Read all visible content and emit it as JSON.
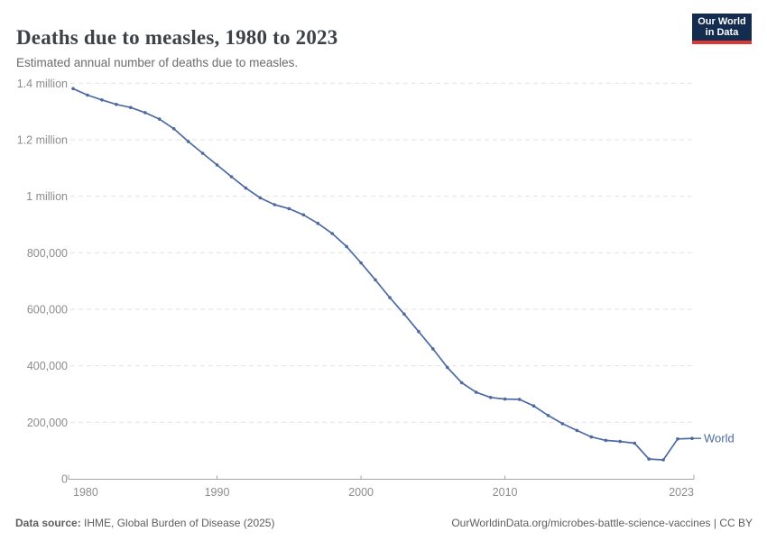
{
  "header": {
    "title": "Deaths due to measles, 1980 to 2023",
    "subtitle": "Estimated annual number of deaths due to measles.",
    "logo": {
      "line1": "Our World",
      "line2": "in Data",
      "bg_color": "#132c4f",
      "accent_color": "#d93a34"
    }
  },
  "footer": {
    "source_label": "Data source:",
    "source_value": " IHME, Global Burden of Disease (2025)",
    "credit": "OurWorldinData.org/microbes-battle-science-vaccines | CC BY"
  },
  "chart_data": {
    "type": "line",
    "title": "Deaths due to measles, 1980 to 2023",
    "subtitle": "Estimated annual number of deaths due to measles.",
    "xlabel": "",
    "ylabel": "",
    "xlim": [
      1980,
      2023
    ],
    "ylim": [
      0,
      1400000
    ],
    "grid": "horizontal-dashed",
    "legend": "end-of-line-label",
    "x": [
      1980,
      1981,
      1982,
      1983,
      1984,
      1985,
      1986,
      1987,
      1988,
      1989,
      1990,
      1991,
      1992,
      1993,
      1994,
      1995,
      1996,
      1997,
      1998,
      1999,
      2000,
      2001,
      2002,
      2003,
      2004,
      2005,
      2006,
      2007,
      2008,
      2009,
      2010,
      2011,
      2012,
      2013,
      2014,
      2015,
      2016,
      2017,
      2018,
      2019,
      2020,
      2021,
      2022,
      2023
    ],
    "series": [
      {
        "name": "World",
        "color": "#4c6aa0",
        "values": [
          1381000,
          1358000,
          1341000,
          1325000,
          1314000,
          1296000,
          1273000,
          1239000,
          1194000,
          1152000,
          1111000,
          1069000,
          1029000,
          994000,
          970000,
          956000,
          934000,
          904000,
          868000,
          822000,
          764000,
          704000,
          641000,
          583000,
          521000,
          460000,
          394000,
          340000,
          306000,
          288000,
          282000,
          281000,
          258000,
          224000,
          195000,
          171000,
          148000,
          136000,
          132000,
          126000,
          70000,
          67000,
          141000,
          143000
        ]
      }
    ],
    "yticks": [
      {
        "value": 0,
        "label": "0"
      },
      {
        "value": 200000,
        "label": "200,000"
      },
      {
        "value": 400000,
        "label": "400,000"
      },
      {
        "value": 600000,
        "label": "600,000"
      },
      {
        "value": 800000,
        "label": "800,000"
      },
      {
        "value": 1000000,
        "label": "1 million"
      },
      {
        "value": 1200000,
        "label": "1.2 million"
      },
      {
        "value": 1400000,
        "label": "1.4 million"
      }
    ],
    "xticks": [
      {
        "value": 1980,
        "label": "1980",
        "align": "first"
      },
      {
        "value": 1990,
        "label": "1990",
        "align": "mid"
      },
      {
        "value": 2000,
        "label": "2000",
        "align": "mid"
      },
      {
        "value": 2010,
        "label": "2010",
        "align": "mid"
      },
      {
        "value": 2023,
        "label": "2023",
        "align": "last"
      }
    ],
    "colors": {
      "line": "#4c6aa0",
      "grid": "#e2e2e2",
      "axis": "#a5a5a5",
      "tick_label": "#8c8c8d"
    }
  }
}
